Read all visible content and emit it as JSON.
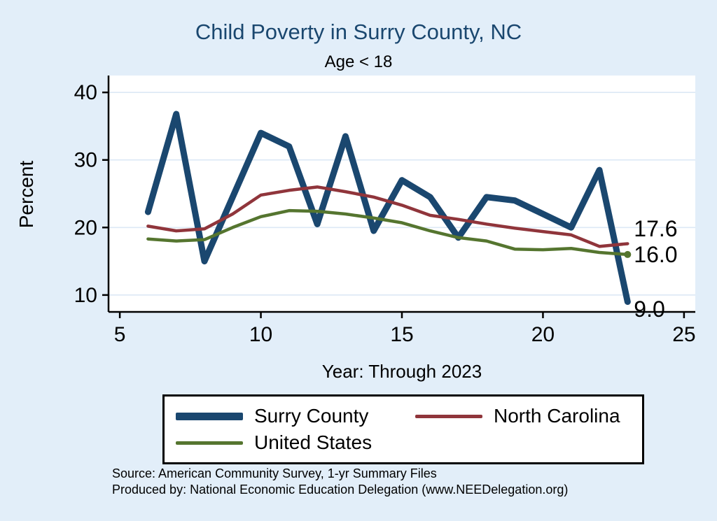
{
  "colors": {
    "background": "#e2eef9",
    "plot_background": "#ffffff",
    "grid": "#dce8f5",
    "axis": "#000000",
    "title": "#1a476f"
  },
  "chart_data": {
    "type": "line",
    "title": "Child Poverty in Surry County, NC",
    "subtitle": "Age < 18",
    "xlabel": "Year: Through 2023",
    "ylabel": "Percent",
    "xlim": [
      4.6,
      25.4
    ],
    "ylim": [
      7.5,
      42.5
    ],
    "x_ticks": [
      5,
      10,
      15,
      20,
      25
    ],
    "y_ticks": [
      10,
      20,
      30,
      40
    ],
    "grid_on": true,
    "legend_position": "bottom",
    "x": [
      6,
      7,
      8,
      9,
      10,
      11,
      12,
      13,
      14,
      15,
      16,
      17,
      18,
      19,
      20,
      21,
      22,
      23
    ],
    "series": [
      {
        "name": "Surry County",
        "color": "#1a476f",
        "width": 9,
        "values": [
          22.3,
          36.8,
          15.0,
          24.5,
          34.0,
          32.0,
          20.5,
          33.5,
          19.5,
          27.0,
          24.5,
          18.5,
          24.5,
          24.0,
          22.0,
          20.0,
          28.5,
          9.0
        ]
      },
      {
        "name": "North Carolina",
        "color": "#90353b",
        "width": 4.5,
        "values": [
          20.2,
          19.5,
          19.8,
          22.0,
          24.8,
          25.5,
          26.0,
          25.3,
          24.5,
          23.3,
          21.8,
          21.2,
          20.5,
          19.9,
          19.4,
          18.9,
          17.2,
          17.6
        ]
      },
      {
        "name": "United States",
        "color": "#55752f",
        "width": 4.5,
        "marker_end": true,
        "values": [
          18.3,
          18.0,
          18.2,
          20.0,
          21.6,
          22.5,
          22.4,
          22.0,
          21.4,
          20.7,
          19.5,
          18.5,
          18.0,
          16.8,
          16.7,
          16.9,
          16.3,
          16.0
        ]
      }
    ],
    "end_labels": [
      {
        "text": "17.6",
        "y": 19.8
      },
      {
        "text": "16.0",
        "y": 16.0
      },
      {
        "text": "9.0",
        "y": 7.9
      }
    ]
  },
  "footer": {
    "line1": "Source: American Community Survey, 1-yr Summary Files",
    "line2": "Produced by: National Economic Education Delegation (www.NEEDelegation.org)"
  }
}
